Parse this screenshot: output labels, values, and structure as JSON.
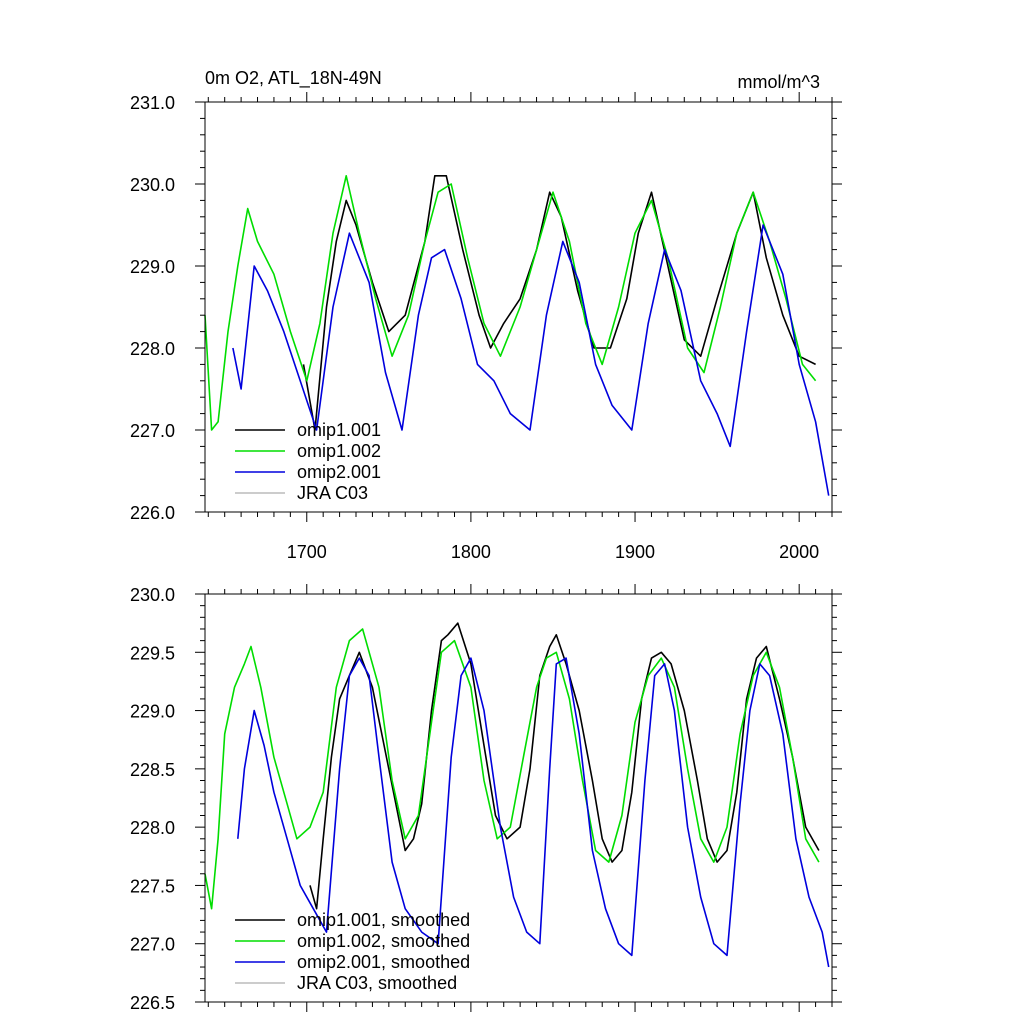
{
  "chart_data": [
    {
      "type": "line",
      "title": "0m O2, ATL_18N-49N",
      "units_label": "mmol/m^3",
      "xlabel": "",
      "ylabel": "",
      "xlim": [
        1638,
        2020
      ],
      "ylim": [
        226.0,
        231.0
      ],
      "x_ticks": [
        1700,
        1800,
        1900,
        2000
      ],
      "x_tick_labels": [
        "1700",
        "1800",
        "1900",
        "2000"
      ],
      "y_ticks": [
        226,
        227,
        228,
        229,
        230,
        231
      ],
      "y_tick_labels": [
        "226.0",
        "227.0",
        "228.0",
        "229.0",
        "230.0",
        "231.0"
      ],
      "legend_position": "lower-left",
      "grid": false,
      "series": [
        {
          "name": "omip1.001",
          "color": "#000000",
          "x": [
            1698,
            1705,
            1712,
            1718,
            1724,
            1730,
            1740,
            1750,
            1760,
            1772,
            1778,
            1785,
            1795,
            1805,
            1812,
            1820,
            1830,
            1840,
            1848,
            1855,
            1865,
            1875,
            1885,
            1895,
            1902,
            1910,
            1920,
            1930,
            1940,
            1950,
            1962,
            1972,
            1980,
            1990,
            2000,
            2010
          ],
          "values": [
            227.8,
            227.0,
            228.5,
            229.3,
            229.8,
            229.5,
            228.8,
            228.2,
            228.4,
            229.3,
            230.1,
            230.1,
            229.2,
            228.4,
            228.0,
            228.3,
            228.6,
            229.2,
            229.9,
            229.6,
            228.7,
            228.0,
            228.0,
            228.6,
            229.4,
            229.9,
            229.0,
            228.1,
            227.9,
            228.6,
            229.4,
            229.9,
            229.1,
            228.4,
            227.9,
            227.8
          ]
        },
        {
          "name": "omip1.002",
          "color": "#00dd00",
          "x": [
            1638,
            1642,
            1646,
            1652,
            1658,
            1664,
            1670,
            1680,
            1690,
            1700,
            1708,
            1716,
            1724,
            1732,
            1742,
            1752,
            1762,
            1772,
            1780,
            1788,
            1798,
            1808,
            1818,
            1830,
            1840,
            1850,
            1860,
            1870,
            1880,
            1890,
            1900,
            1910,
            1920,
            1932,
            1942,
            1952,
            1962,
            1972,
            1982,
            1992,
            2002,
            2010
          ],
          "values": [
            228.4,
            227.0,
            227.1,
            228.2,
            229.0,
            229.7,
            229.3,
            228.9,
            228.2,
            227.6,
            228.3,
            229.4,
            230.1,
            229.4,
            228.6,
            227.9,
            228.4,
            229.3,
            229.9,
            230.0,
            229.1,
            228.3,
            227.9,
            228.5,
            229.2,
            229.9,
            229.3,
            228.3,
            227.8,
            228.5,
            229.4,
            229.8,
            229.1,
            228.0,
            227.7,
            228.5,
            229.4,
            229.9,
            229.3,
            228.6,
            227.8,
            227.6
          ]
        },
        {
          "name": "omip2.001",
          "color": "#0000dd",
          "x": [
            1655,
            1660,
            1668,
            1676,
            1686,
            1696,
            1706,
            1716,
            1726,
            1738,
            1748,
            1758,
            1768,
            1776,
            1784,
            1794,
            1804,
            1814,
            1824,
            1836,
            1846,
            1856,
            1866,
            1876,
            1886,
            1898,
            1908,
            1918,
            1928,
            1940,
            1950,
            1958,
            1968,
            1978,
            1990,
            2000,
            2010,
            2018
          ],
          "values": [
            228.0,
            227.5,
            229.0,
            228.7,
            228.2,
            227.6,
            227.0,
            228.5,
            229.4,
            228.8,
            227.7,
            227.0,
            228.4,
            229.1,
            229.2,
            228.6,
            227.8,
            227.6,
            227.2,
            227.0,
            228.4,
            229.3,
            228.8,
            227.8,
            227.3,
            227.0,
            228.3,
            229.2,
            228.7,
            227.6,
            227.2,
            226.8,
            228.2,
            229.5,
            228.9,
            227.8,
            227.1,
            226.2
          ]
        },
        {
          "name": "JRA C03",
          "color": "#bbbbbb",
          "x": [],
          "values": []
        }
      ]
    },
    {
      "type": "line",
      "title": "",
      "xlabel": "",
      "ylabel": "",
      "xlim": [
        1638,
        2020
      ],
      "ylim": [
        226.5,
        230.0
      ],
      "x_ticks": [
        1700,
        1800,
        1900,
        2000
      ],
      "y_ticks": [
        226.5,
        227.0,
        227.5,
        228.0,
        228.5,
        229.0,
        229.5,
        230.0
      ],
      "y_tick_labels": [
        "226.5",
        "227.0",
        "227.5",
        "228.0",
        "228.5",
        "229.0",
        "229.5",
        "230.0"
      ],
      "legend_position": "lower-left",
      "grid": false,
      "series": [
        {
          "name": "omip1.001, smoothed",
          "color": "#000000",
          "x": [
            1702,
            1706,
            1710,
            1715,
            1720,
            1726,
            1732,
            1740,
            1750,
            1760,
            1765,
            1770,
            1776,
            1782,
            1786,
            1792,
            1800,
            1808,
            1815,
            1822,
            1830,
            1836,
            1842,
            1848,
            1852,
            1858,
            1866,
            1874,
            1880,
            1886,
            1892,
            1898,
            1904,
            1910,
            1916,
            1922,
            1930,
            1938,
            1944,
            1950,
            1956,
            1962,
            1968,
            1974,
            1980,
            1988,
            1996,
            2004,
            2012
          ],
          "values": [
            227.5,
            227.3,
            227.9,
            228.6,
            229.1,
            229.3,
            229.5,
            229.2,
            228.5,
            227.8,
            227.9,
            228.2,
            229.0,
            229.6,
            229.65,
            229.75,
            229.4,
            228.7,
            228.1,
            227.9,
            228.0,
            228.5,
            229.3,
            229.55,
            229.65,
            229.4,
            229.0,
            228.4,
            227.9,
            227.7,
            227.8,
            228.3,
            229.1,
            229.45,
            229.5,
            229.4,
            229.0,
            228.4,
            227.9,
            227.7,
            227.8,
            228.3,
            229.1,
            229.45,
            229.55,
            229.1,
            228.6,
            228.0,
            227.8
          ]
        },
        {
          "name": "omip1.002, smoothed",
          "color": "#00dd00",
          "x": [
            1638,
            1642,
            1646,
            1650,
            1656,
            1662,
            1666,
            1672,
            1680,
            1688,
            1694,
            1702,
            1710,
            1718,
            1726,
            1734,
            1744,
            1752,
            1760,
            1768,
            1776,
            1782,
            1790,
            1800,
            1808,
            1816,
            1824,
            1832,
            1840,
            1846,
            1852,
            1860,
            1868,
            1876,
            1884,
            1892,
            1900,
            1908,
            1916,
            1924,
            1932,
            1940,
            1948,
            1956,
            1964,
            1972,
            1980,
            1988,
            1996,
            2004,
            2012
          ],
          "values": [
            227.6,
            227.3,
            227.9,
            228.8,
            229.2,
            229.4,
            229.55,
            229.2,
            228.6,
            228.2,
            227.9,
            228.0,
            228.3,
            229.2,
            229.6,
            229.7,
            229.2,
            228.4,
            227.9,
            228.1,
            228.9,
            229.5,
            229.6,
            229.2,
            228.4,
            227.9,
            228.0,
            228.6,
            229.2,
            229.45,
            229.5,
            229.1,
            228.4,
            227.8,
            227.7,
            228.1,
            228.9,
            229.3,
            229.45,
            229.2,
            228.5,
            227.9,
            227.7,
            228.0,
            228.8,
            229.3,
            229.5,
            229.2,
            228.6,
            227.9,
            227.7
          ]
        },
        {
          "name": "omip2.001, smoothed",
          "color": "#0000dd",
          "x": [
            1658,
            1662,
            1668,
            1674,
            1680,
            1688,
            1696,
            1704,
            1712,
            1720,
            1726,
            1732,
            1738,
            1744,
            1752,
            1760,
            1770,
            1780,
            1788,
            1794,
            1800,
            1808,
            1818,
            1826,
            1834,
            1842,
            1848,
            1852,
            1858,
            1866,
            1874,
            1882,
            1890,
            1898,
            1906,
            1912,
            1918,
            1924,
            1932,
            1940,
            1948,
            1956,
            1964,
            1970,
            1976,
            1982,
            1990,
            1998,
            2006,
            2014,
            2018
          ],
          "values": [
            227.9,
            228.5,
            229.0,
            228.7,
            228.3,
            227.9,
            227.5,
            227.3,
            227.1,
            228.5,
            229.3,
            229.45,
            229.3,
            228.6,
            227.7,
            227.3,
            227.1,
            227.0,
            228.6,
            229.3,
            229.45,
            229.0,
            228.0,
            227.4,
            227.1,
            227.0,
            228.5,
            229.4,
            229.45,
            228.8,
            227.8,
            227.3,
            227.0,
            226.9,
            228.4,
            229.3,
            229.4,
            229.0,
            228.0,
            227.4,
            227.0,
            226.9,
            228.2,
            229.0,
            229.4,
            229.3,
            228.8,
            227.9,
            227.4,
            227.1,
            226.8
          ]
        },
        {
          "name": "JRA C03, smoothed",
          "color": "#bbbbbb",
          "x": [],
          "values": []
        }
      ]
    }
  ]
}
